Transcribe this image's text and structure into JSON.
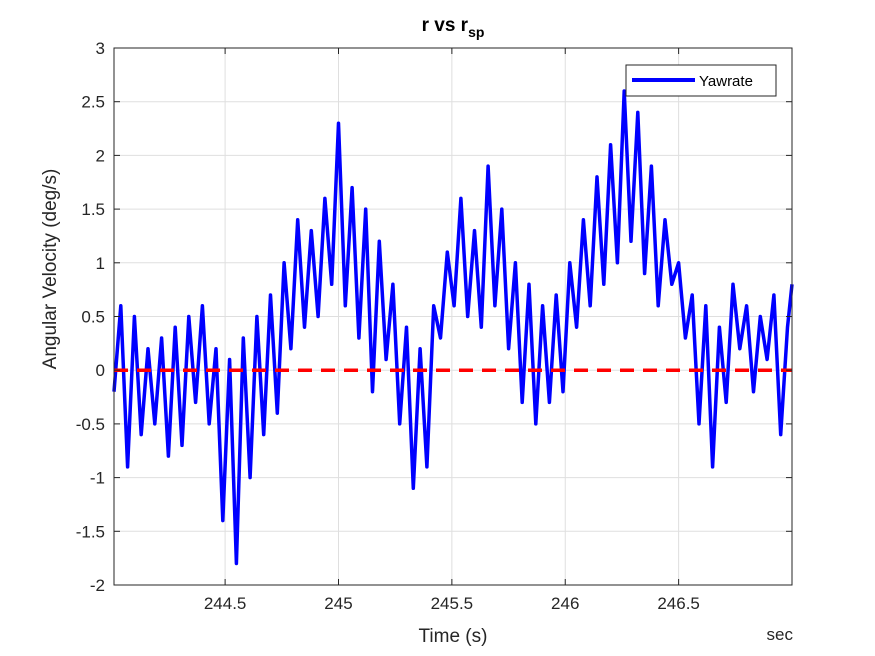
{
  "chart_data": {
    "type": "line",
    "title": "r vs r",
    "title_subscript": "sp",
    "xlabel": "Time (s)",
    "ylabel": "Angular Velocity (deg/s)",
    "x_unit_label": "sec",
    "xlim": [
      244.01,
      247.0
    ],
    "ylim": [
      -2,
      3
    ],
    "xticks": [
      244.5,
      245,
      245.5,
      246,
      246.5
    ],
    "xtick_labels": [
      "244.5",
      "245",
      "245.5",
      "246",
      "246.5"
    ],
    "yticks": [
      -2,
      -1.5,
      -1,
      -0.5,
      0,
      0.5,
      1,
      1.5,
      2,
      2.5,
      3
    ],
    "ytick_labels": [
      "-2",
      "-1.5",
      "-1",
      "-0.5",
      "0",
      "0.5",
      "1",
      "1.5",
      "2",
      "2.5",
      "3"
    ],
    "grid": true,
    "legend_position": "top-right",
    "series": [
      {
        "name": "Yawrate",
        "color": "#0000ff",
        "style": "solid",
        "x": [
          244.01,
          244.04,
          244.07,
          244.1,
          244.13,
          244.16,
          244.19,
          244.22,
          244.25,
          244.28,
          244.31,
          244.34,
          244.37,
          244.4,
          244.43,
          244.46,
          244.49,
          244.52,
          244.55,
          244.58,
          244.61,
          244.64,
          244.67,
          244.7,
          244.73,
          244.76,
          244.79,
          244.82,
          244.85,
          244.88,
          244.91,
          244.94,
          244.97,
          245.0,
          245.03,
          245.06,
          245.09,
          245.12,
          245.15,
          245.18,
          245.21,
          245.24,
          245.27,
          245.3,
          245.33,
          245.36,
          245.39,
          245.42,
          245.45,
          245.48,
          245.51,
          245.54,
          245.57,
          245.6,
          245.63,
          245.66,
          245.69,
          245.72,
          245.75,
          245.78,
          245.81,
          245.84,
          245.87,
          245.9,
          245.93,
          245.96,
          245.99,
          246.02,
          246.05,
          246.08,
          246.11,
          246.14,
          246.17,
          246.2,
          246.23,
          246.26,
          246.29,
          246.32,
          246.35,
          246.38,
          246.41,
          246.44,
          246.47,
          246.5,
          246.53,
          246.56,
          246.59,
          246.62,
          246.65,
          246.68,
          246.71,
          246.74,
          246.77,
          246.8,
          246.83,
          246.86,
          246.89,
          246.92,
          246.95,
          246.98,
          247.0
        ],
        "y": [
          -0.2,
          0.6,
          -0.9,
          0.5,
          -0.6,
          0.2,
          -0.5,
          0.3,
          -0.8,
          0.4,
          -0.7,
          0.5,
          -0.3,
          0.6,
          -0.5,
          0.2,
          -1.4,
          0.1,
          -1.8,
          0.3,
          -1.0,
          0.5,
          -0.6,
          0.7,
          -0.4,
          1.0,
          0.2,
          1.4,
          0.4,
          1.3,
          0.5,
          1.6,
          0.8,
          2.3,
          0.6,
          1.7,
          0.3,
          1.5,
          -0.2,
          1.2,
          0.1,
          0.8,
          -0.5,
          0.4,
          -1.1,
          0.2,
          -0.9,
          0.6,
          0.3,
          1.1,
          0.6,
          1.6,
          0.5,
          1.3,
          0.4,
          1.9,
          0.6,
          1.5,
          0.2,
          1.0,
          -0.3,
          0.8,
          -0.5,
          0.6,
          -0.3,
          0.7,
          -0.2,
          1.0,
          0.4,
          1.4,
          0.6,
          1.8,
          0.8,
          2.1,
          1.0,
          2.6,
          1.2,
          2.4,
          0.9,
          1.9,
          0.6,
          1.4,
          0.8,
          1.0,
          0.3,
          0.7,
          -0.5,
          0.6,
          -0.9,
          0.4,
          -0.3,
          0.8,
          0.2,
          0.6,
          -0.2,
          0.5,
          0.1,
          0.7,
          -0.6,
          0.4,
          0.8
        ]
      },
      {
        "name": "",
        "color": "#ff0000",
        "style": "dashed",
        "x": [
          244.01,
          247.0
        ],
        "y": [
          0,
          0
        ]
      }
    ],
    "legend_entries": [
      "Yawrate"
    ]
  }
}
